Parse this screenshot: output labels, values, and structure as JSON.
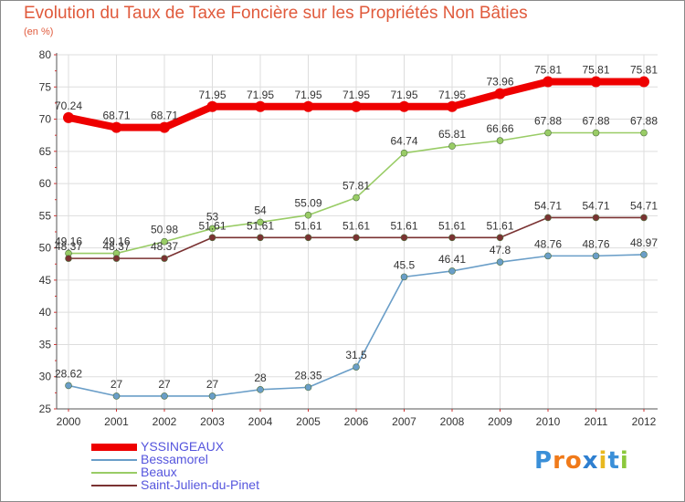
{
  "title": "Evolution du Taux de Taxe Foncière sur les Propriétés Non Bâties",
  "subtitle": "(en %)",
  "logo": {
    "text": "Proxiti",
    "letters": [
      "P",
      "r",
      "o",
      "x",
      "i",
      "t",
      "i"
    ],
    "colors": [
      "#3a8fd8",
      "#f07a1a",
      "#f07a1a",
      "#2e7fd0",
      "#e8b820",
      "#3a8fd8",
      "#8cc83c"
    ]
  },
  "chart_data": {
    "type": "line",
    "title": "Evolution du Taux de Taxe Foncière sur les Propriétés Non Bâties",
    "ylabel": "(en %)",
    "x": [
      "2000",
      "2001",
      "2002",
      "2003",
      "2004",
      "2005",
      "2006",
      "2007",
      "2008",
      "2009",
      "2010",
      "2011",
      "2012"
    ],
    "ylim": [
      25,
      80
    ],
    "yticks": [
      25,
      30,
      35,
      40,
      45,
      50,
      55,
      60,
      65,
      70,
      75,
      80
    ],
    "grid": true,
    "series": [
      {
        "name": "YSSINGEAUX",
        "color": "#ee0000",
        "values": [
          70.24,
          68.71,
          68.71,
          71.95,
          71.95,
          71.95,
          71.95,
          71.95,
          71.95,
          73.96,
          75.81,
          75.81,
          75.81
        ],
        "labels": [
          "70.24",
          "68.71",
          "68.71",
          "71.95",
          "71.95",
          "71.95",
          "71.95",
          "71.95",
          "71.95",
          "73.96",
          "75.81",
          "75.81",
          "75.81"
        ]
      },
      {
        "name": "Bessamorel",
        "color": "#6a9ec8",
        "values": [
          28.62,
          27,
          27,
          27,
          28,
          28.35,
          31.5,
          45.5,
          46.41,
          47.8,
          48.76,
          48.76,
          48.97
        ],
        "labels": [
          "28.62",
          "27",
          "27",
          "27",
          "28",
          "28.35",
          "31.5",
          "45.5",
          "46.41",
          "47.8",
          "48.76",
          "48.76",
          "48.97"
        ]
      },
      {
        "name": "Beaux",
        "color": "#99cc66",
        "values": [
          49.16,
          49.16,
          50.98,
          53,
          54,
          55.09,
          57.81,
          64.74,
          65.81,
          66.66,
          67.88,
          67.88,
          67.88
        ],
        "labels": [
          "49.16",
          "49.16",
          "50.98",
          "53",
          "54",
          "55.09",
          "57.81",
          "64.74",
          "65.81",
          "66.66",
          "67.88",
          "67.88",
          "67.88"
        ]
      },
      {
        "name": "Saint-Julien-du-Pinet",
        "color": "#7a3232",
        "values": [
          48.37,
          48.37,
          48.37,
          51.61,
          51.61,
          51.61,
          51.61,
          51.61,
          51.61,
          51.61,
          54.71,
          54.71,
          54.71
        ],
        "labels": [
          "48.37",
          "48.37",
          "48.37",
          "51.61",
          "51.61",
          "51.61",
          "51.61",
          "51.61",
          "51.61",
          "51.61",
          "54.71",
          "54.71",
          "54.71"
        ]
      }
    ],
    "legend": "bottom-left"
  }
}
